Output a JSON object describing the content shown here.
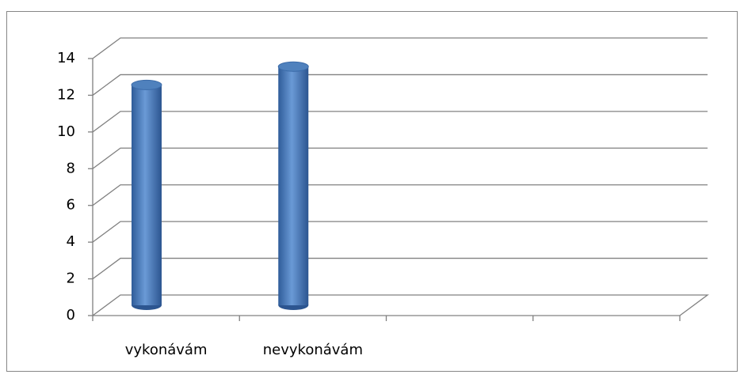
{
  "chart_data": {
    "type": "bar3d",
    "categories": [
      "vykonávám",
      "nevykonávám",
      null,
      null
    ],
    "values": [
      12,
      13,
      null,
      null
    ],
    "color": "#4f81bd",
    "ylim": [
      0,
      14
    ],
    "yticks": [
      0,
      2,
      4,
      6,
      8,
      10,
      12,
      14
    ],
    "grid": true
  }
}
